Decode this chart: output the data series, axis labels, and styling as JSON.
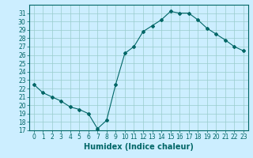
{
  "x": [
    0,
    1,
    2,
    3,
    4,
    5,
    6,
    7,
    8,
    9,
    10,
    11,
    12,
    13,
    14,
    15,
    16,
    17,
    18,
    19,
    20,
    21,
    22,
    23
  ],
  "y": [
    22.5,
    21.5,
    21.0,
    20.5,
    19.8,
    19.5,
    19.0,
    17.2,
    18.2,
    22.5,
    26.2,
    27.0,
    28.8,
    29.5,
    30.2,
    31.2,
    31.0,
    31.0,
    30.2,
    29.2,
    28.5,
    27.8,
    27.0,
    26.5
  ],
  "title": "",
  "xlabel": "Humidex (Indice chaleur)",
  "ylabel": "",
  "ylim": [
    17,
    32
  ],
  "xlim": [
    -0.5,
    23.5
  ],
  "yticks": [
    17,
    18,
    19,
    20,
    21,
    22,
    23,
    24,
    25,
    26,
    27,
    28,
    29,
    30,
    31
  ],
  "xticks": [
    0,
    1,
    2,
    3,
    4,
    5,
    6,
    7,
    8,
    9,
    10,
    11,
    12,
    13,
    14,
    15,
    16,
    17,
    18,
    19,
    20,
    21,
    22,
    23
  ],
  "line_color": "#006666",
  "marker": "D",
  "marker_size": 2,
  "bg_color": "#cceeff",
  "grid_color": "#99cccc",
  "tick_fontsize": 5.5,
  "xlabel_fontsize": 7,
  "label_color": "#006666"
}
